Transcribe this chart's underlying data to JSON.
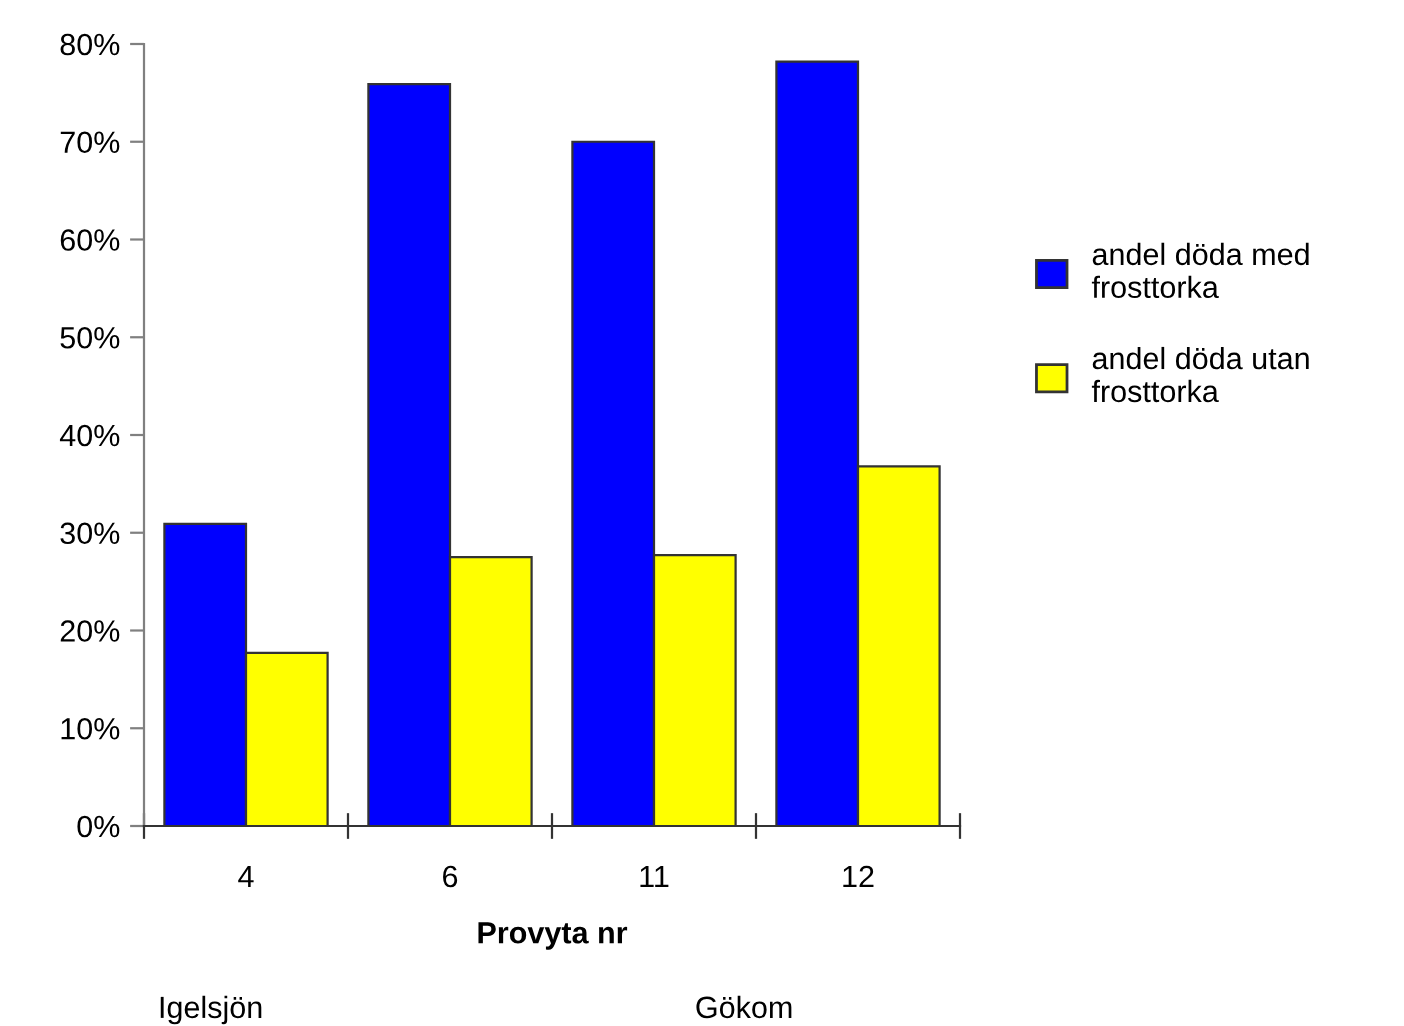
{
  "chart_data": {
    "type": "bar",
    "xlabel": "Provyta nr",
    "categories": [
      "4",
      "6",
      "11",
      "12"
    ],
    "series": [
      {
        "name": "andel döda med frosttorka",
        "color": "#0000ff",
        "values": [
          30.9,
          75.9,
          70.0,
          78.2
        ]
      },
      {
        "name": "andel döda utan frosttorka",
        "color": "#ffff00",
        "values": [
          17.7,
          27.5,
          27.7,
          36.8
        ]
      }
    ],
    "ylim": [
      0,
      80
    ],
    "yticks": [
      {
        "value": 0,
        "label": "0%"
      },
      {
        "value": 10,
        "label": "10%"
      },
      {
        "value": 20,
        "label": "20%"
      },
      {
        "value": 30,
        "label": "30%"
      },
      {
        "value": 40,
        "label": "40%"
      },
      {
        "value": 50,
        "label": "50%"
      },
      {
        "value": 60,
        "label": "60%"
      },
      {
        "value": 70,
        "label": "70%"
      },
      {
        "value": 80,
        "label": "80%"
      }
    ],
    "grid": false,
    "legend": "right",
    "annotations": [
      "Igelsjön",
      "Gökom"
    ]
  }
}
